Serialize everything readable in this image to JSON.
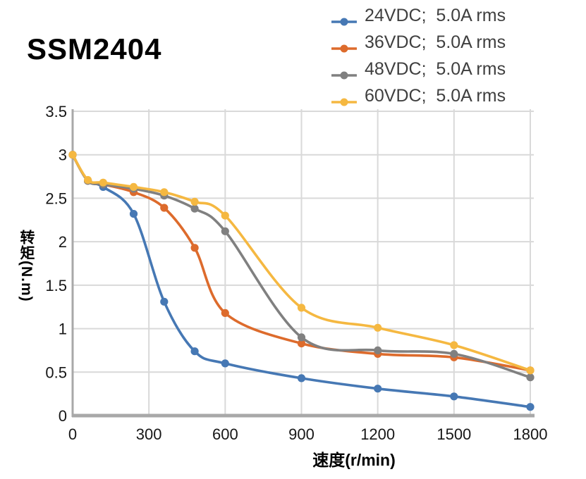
{
  "page": {
    "title": "SSM2404"
  },
  "colors": {
    "grid": "#d9d9d9",
    "axis": "#a8a8a8",
    "tick_text": "#171717",
    "legend_text": "#3f3f3f",
    "title_text": "#000000"
  },
  "chart_data": {
    "type": "line",
    "title": "SSM2404",
    "xlabel": "速度(r/min)",
    "ylabel": "转矩(N.m)",
    "grid": true,
    "legend_position": "top-right",
    "xlim": [
      0,
      1800
    ],
    "ylim": [
      0,
      3.5
    ],
    "x_tick_values": [
      0,
      300,
      600,
      900,
      1200,
      1500,
      1800
    ],
    "x_tick_labels": [
      "0",
      "300",
      "600",
      "900",
      "1200",
      "1500",
      "1800"
    ],
    "y_tick_values": [
      0,
      0.5,
      1,
      1.5,
      2,
      2.5,
      3,
      3.5
    ],
    "y_tick_labels": [
      "0",
      "0.5",
      "1",
      "1.5",
      "2",
      "2.5",
      "3",
      "3.5"
    ],
    "x": [
      0,
      60,
      120,
      240,
      360,
      480,
      600,
      900,
      1200,
      1500,
      1800
    ],
    "series": [
      {
        "name": "24VDC;  5.0A rms",
        "color": "#4678b4",
        "values": [
          3.0,
          2.7,
          2.63,
          2.32,
          1.31,
          0.74,
          0.6,
          0.43,
          0.31,
          0.22,
          0.1
        ]
      },
      {
        "name": "36VDC;  5.0A rms",
        "color": "#dd6b2c",
        "values": [
          3.0,
          2.7,
          2.66,
          2.57,
          2.39,
          1.93,
          1.18,
          0.83,
          0.71,
          0.67,
          0.52
        ]
      },
      {
        "name": "48VDC;  5.0A rms",
        "color": "#808080",
        "values": [
          3.0,
          2.7,
          2.66,
          2.61,
          2.53,
          2.38,
          2.12,
          0.9,
          0.75,
          0.71,
          0.44
        ]
      },
      {
        "name": "60VDC;  5.0A rms",
        "color": "#f5b841",
        "values": [
          3.0,
          2.71,
          2.68,
          2.63,
          2.57,
          2.46,
          2.3,
          1.24,
          1.01,
          0.81,
          0.52
        ]
      }
    ]
  }
}
